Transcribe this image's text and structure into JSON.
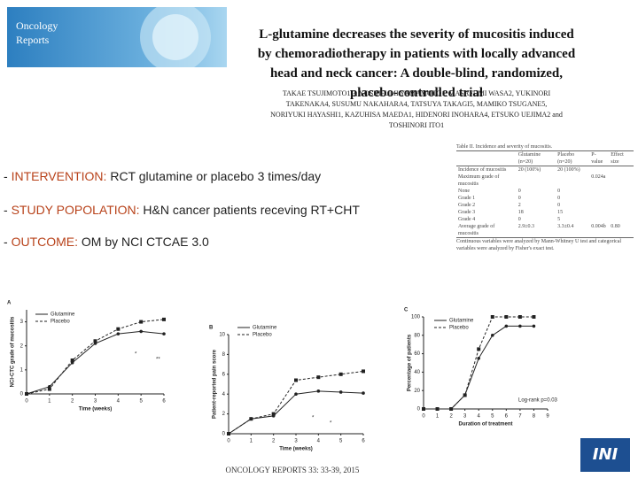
{
  "logo": {
    "line1": "Oncology",
    "line2": "Reports"
  },
  "title": "L-glutamine decreases the severity of mucositis induced by chemoradiotherapy in patients with locally advanced head and neck cancer: A double-blind, randomized, placebo-controlled trial",
  "authors": "TAKAE TSUJIMOTO1,3, YOSHIFUMI YAMAMOTO1, MASAFUMI WASA2, YUKINORI TAKENAKA4, SUSUMU NAKAHARA4, TATSUYA TAKAGI5, MAMIKO TSUGANE5, NORIYUKI HAYASHI1, KAZUHISA MAEDA1, HIDENORI INOHARA4, ETSUKO UEJIMA2 and TOSHINORI ITO1",
  "bullets": [
    {
      "label": "INTERVENTION:",
      "text": "RCT glutamine or placebo 3 times/day"
    },
    {
      "label": "STUDY POPOLATION:",
      "text": "H&N cancer patients receving RT+CHT"
    },
    {
      "label": "OUTCOME:",
      "text": "OM by NCI CTCAE 3.0"
    }
  ],
  "table": {
    "caption": "Table II. Incidence and severity of mucositis.",
    "header": [
      "",
      "Glutamine (n=20)",
      "Placebo (n=20)",
      "P-value",
      "Effect size"
    ],
    "rows": [
      [
        "Incidence of mucositis",
        "20 (100%)",
        "20 (100%)",
        "",
        ""
      ],
      [
        "Maximum grade of mucositis",
        "",
        "",
        "0.024a",
        ""
      ],
      [
        "None",
        "0",
        "0",
        "",
        ""
      ],
      [
        "Grade 1",
        "0",
        "0",
        "",
        ""
      ],
      [
        "Grade 2",
        "2",
        "0",
        "",
        ""
      ],
      [
        "Grade 3",
        "18",
        "15",
        "",
        ""
      ],
      [
        "Grade 4",
        "0",
        "5",
        "",
        ""
      ],
      [
        "Average grade of mucositis",
        "2.9±0.3",
        "3.3±0.4",
        "0.004b",
        "0.80"
      ]
    ],
    "footnote": "Continuous variables were analyzed by Mann-Whitney U test and categorical variables were analyzed by Fisher's exact test."
  },
  "figures": [
    {
      "type": "line",
      "panel": "A",
      "xlabel": "Time (weeks)",
      "ylabel": "NCI-CTC grade of mucositis",
      "x": [
        0,
        1,
        2,
        3,
        4,
        5,
        6
      ],
      "xlim": [
        0,
        6
      ],
      "xticks": [
        0,
        1,
        2,
        3,
        4,
        5,
        6
      ],
      "ylim": [
        0,
        3.5
      ],
      "yticks": [
        0,
        1,
        2,
        3
      ],
      "annotations": [
        "*",
        "**"
      ],
      "series": [
        {
          "name": "Glutamine",
          "color": "#222222",
          "values": [
            0,
            0.3,
            1.3,
            2.1,
            2.5,
            2.6,
            2.5
          ]
        },
        {
          "name": "Placebo",
          "color": "#222222",
          "values": [
            0,
            0.2,
            1.4,
            2.2,
            2.7,
            3.0,
            3.1
          ]
        }
      ]
    },
    {
      "type": "line",
      "panel": "B",
      "xlabel": "Time (weeks)",
      "ylabel": "Patient-reported pain score",
      "x": [
        0,
        1,
        2,
        3,
        4,
        5,
        6
      ],
      "xlim": [
        0,
        6
      ],
      "xticks": [
        0,
        1,
        2,
        3,
        4,
        5,
        6
      ],
      "ylim": [
        0,
        10
      ],
      "yticks": [
        0,
        2,
        4,
        6,
        8,
        10
      ],
      "annotations": [
        "*",
        "*"
      ],
      "series": [
        {
          "name": "Glutamine",
          "color": "#222222",
          "values": [
            0,
            1.5,
            1.8,
            4.0,
            4.3,
            4.2,
            4.1
          ]
        },
        {
          "name": "Placebo",
          "color": "#222222",
          "values": [
            0,
            1.5,
            2.0,
            5.4,
            5.7,
            6.0,
            6.3
          ]
        }
      ]
    },
    {
      "type": "line",
      "panel": "C",
      "xlabel": "Duration of treatment",
      "ylabel": "Percentage of patients",
      "x": [
        0,
        1,
        2,
        3,
        4,
        5,
        6,
        7,
        8
      ],
      "xlim": [
        0,
        9
      ],
      "xticks": [
        0,
        1,
        2,
        3,
        4,
        5,
        6,
        7,
        8,
        9
      ],
      "ylim": [
        0,
        100
      ],
      "yticks": [
        0,
        20,
        40,
        60,
        80,
        100
      ],
      "annotations": [
        "Log-rank p=0.03"
      ],
      "series": [
        {
          "name": "Glutamine",
          "color": "#222222",
          "values": [
            0,
            0,
            0,
            15,
            55,
            80,
            90,
            90,
            90
          ]
        },
        {
          "name": "Placebo",
          "color": "#222222",
          "values": [
            0,
            0,
            0,
            15,
            65,
            100,
            100,
            100,
            100
          ]
        }
      ]
    }
  ],
  "footer": "ONCOLOGY REPORTS 33: 33-39, 2015",
  "corner_logo": "INI"
}
